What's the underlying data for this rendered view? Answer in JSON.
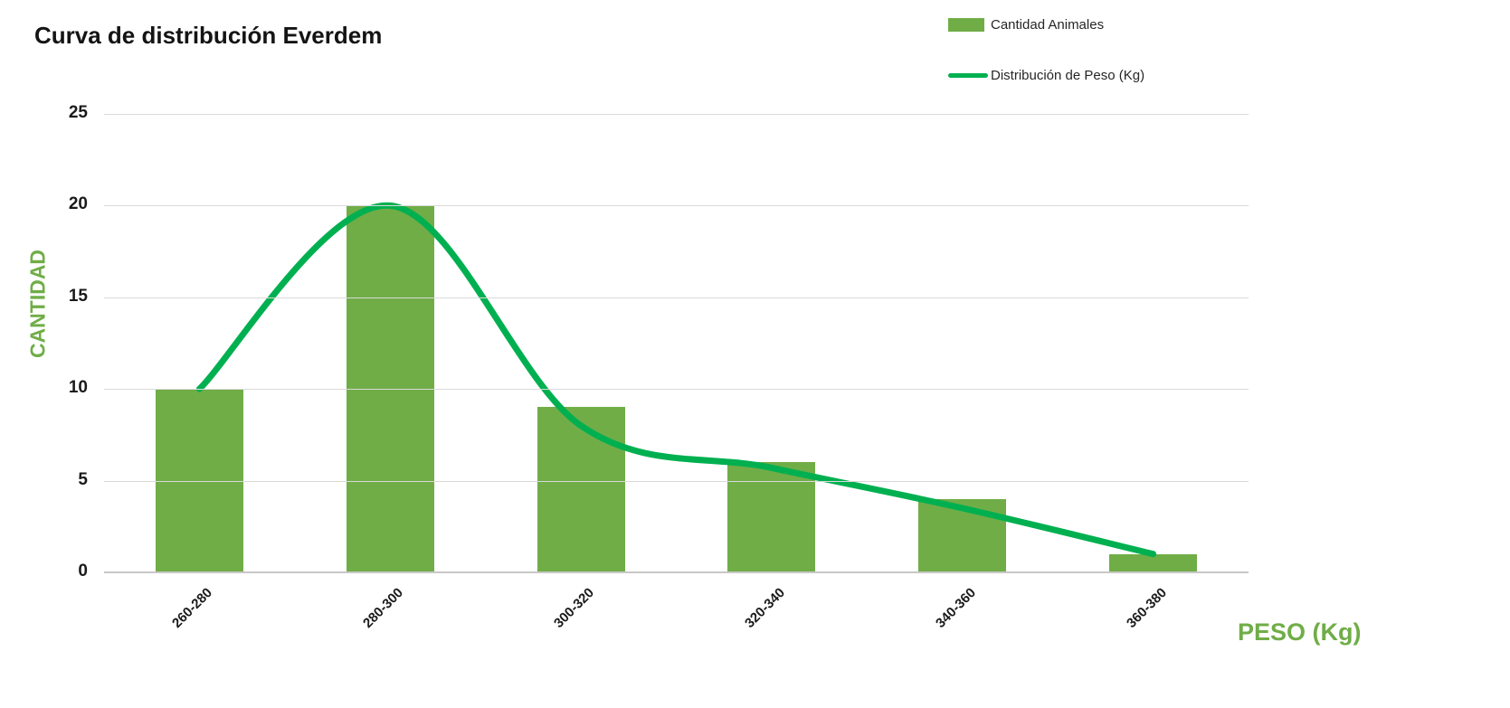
{
  "chart_data": {
    "type": "bar",
    "title": "Curva de distribución Everdem",
    "categories": [
      "260-280",
      "280-300",
      "300-320",
      "320-340",
      "340-360",
      "360-380"
    ],
    "series": [
      {
        "name": "Cantidad Animales",
        "kind": "bar",
        "color": "#70AD47",
        "values": [
          10,
          20,
          9,
          6,
          4,
          1
        ]
      },
      {
        "name": "Distribución de Peso (Kg)",
        "kind": "line",
        "color": "#00B050",
        "smooth": true,
        "values": [
          10,
          20,
          8,
          5.7,
          3.5,
          1
        ]
      }
    ],
    "xlabel": "PESO (Kg)",
    "ylabel": "CANTIDAD",
    "ylim": [
      0,
      25
    ],
    "yticks": [
      0,
      5,
      10,
      15,
      20,
      25
    ],
    "grid": true,
    "legend_position": "top-right",
    "colors": {
      "axis_titles": "#70AD47",
      "gridlines": "#D9D9D9",
      "axis_line": "#C9C7C7",
      "tick_text": "#1a1a1a",
      "legend_text": "#262626",
      "title_text": "#141414"
    }
  }
}
